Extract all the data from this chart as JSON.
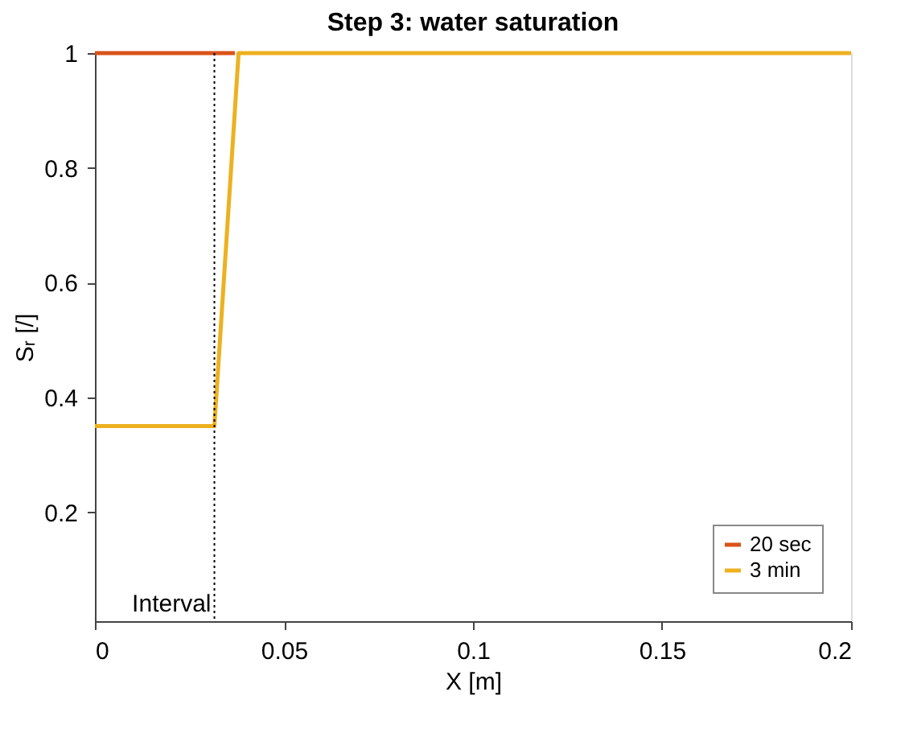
{
  "chart_data": {
    "type": "line",
    "title": "Step 3: water saturation",
    "xlabel": "X [m]",
    "ylabel": "Sᵣ [/]",
    "xlim": [
      0,
      0.2
    ],
    "xticks": [
      0,
      0.05,
      0.1,
      0.15,
      0.2
    ],
    "ylim": [
      0.01,
      1
    ],
    "yticks": [
      0.2,
      0.4,
      0.6,
      0.8,
      1
    ],
    "series": [
      {
        "name": "20 sec",
        "color": "#d95319",
        "x": [
          0,
          0.037
        ],
        "values": [
          1,
          1
        ]
      },
      {
        "name": "3 min",
        "color": "#edb120",
        "x": [
          0,
          0.0316,
          0.038,
          0.2
        ],
        "values": [
          0.35,
          0.35,
          1,
          1
        ]
      }
    ],
    "ref_lines": [
      {
        "axis": "x",
        "value": 0.0316,
        "label": "Interval",
        "color": "#000000",
        "line_style": "dotted"
      }
    ],
    "legend": "bottom right",
    "grid": false,
    "marker": "none",
    "line_style": "solid"
  }
}
